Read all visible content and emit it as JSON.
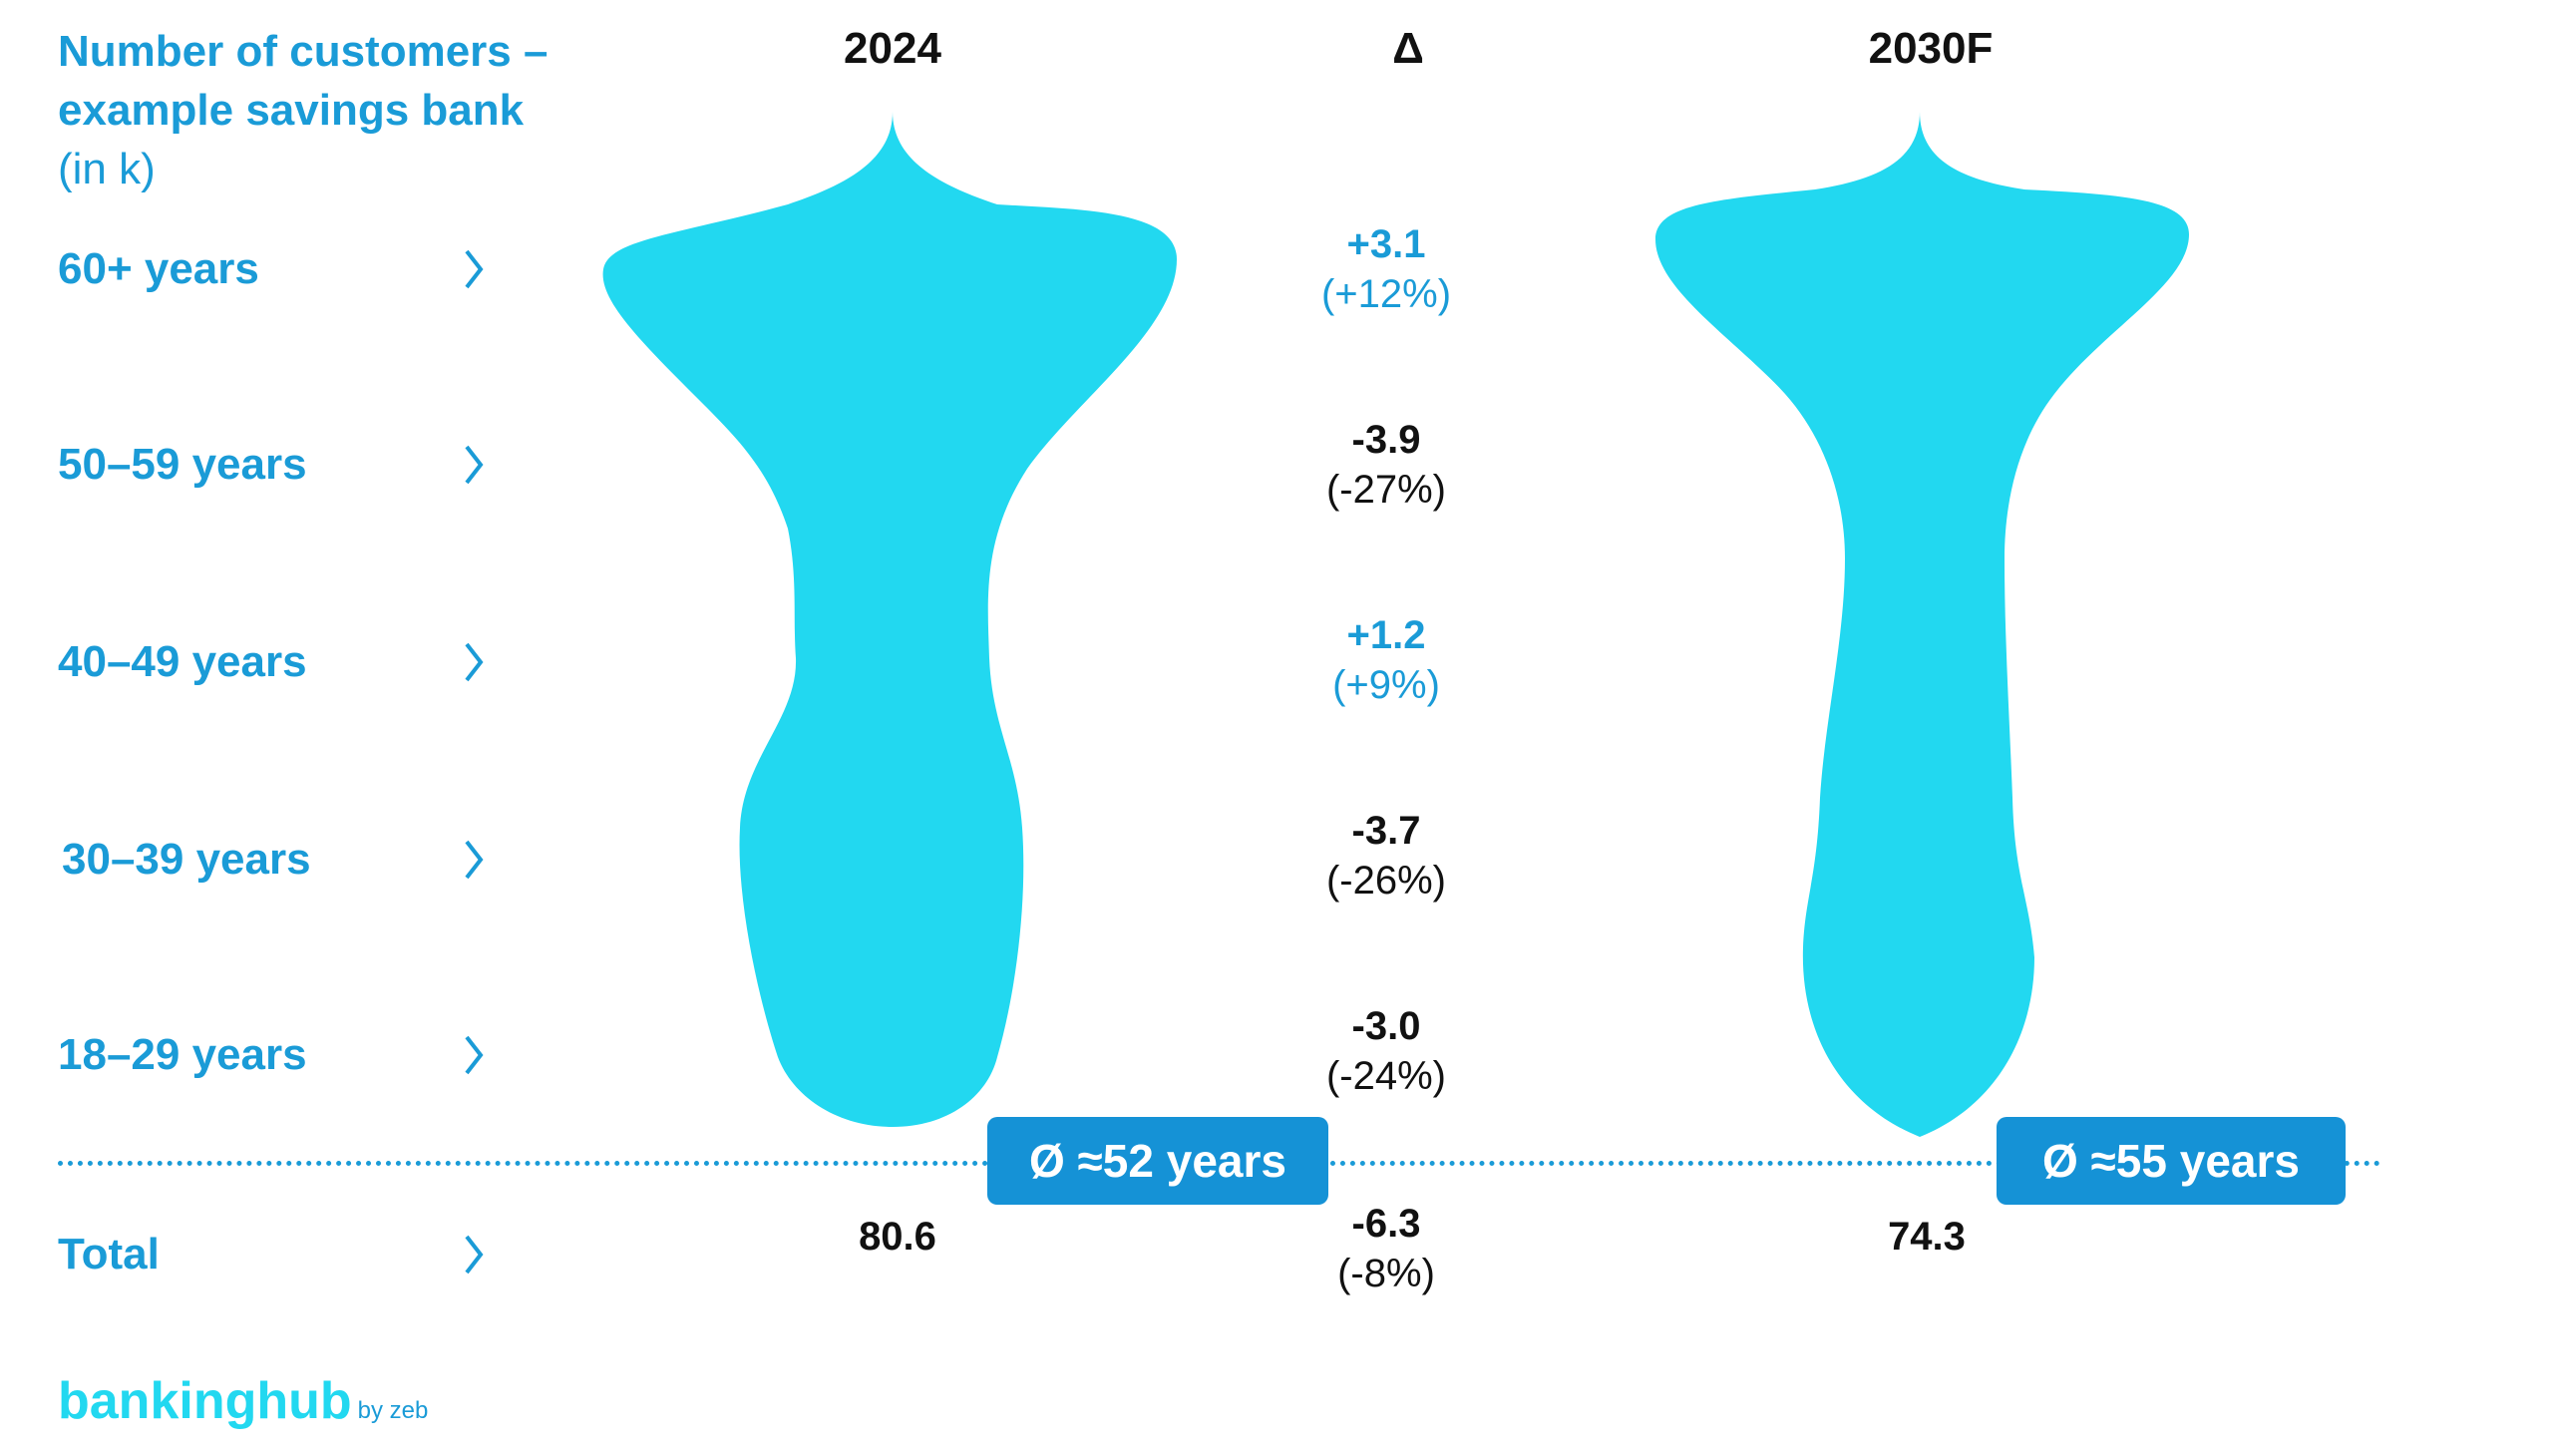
{
  "title": {
    "line1": "Number of customers –",
    "line2": "example savings bank",
    "unit": "(in k)"
  },
  "columns": {
    "left": "2024",
    "middle": "Δ",
    "right": "2030F"
  },
  "rows": [
    {
      "label": "60+ years",
      "delta": "+3.1",
      "pct": "(+12%)",
      "tone": "positive"
    },
    {
      "label": "50–59 years",
      "delta": "-3.9",
      "pct": "(-27%)",
      "tone": "negative"
    },
    {
      "label": "40–49 years",
      "delta": "+1.2",
      "pct": "(+9%)",
      "tone": "positive"
    },
    {
      "label": "30–39 years",
      "delta": "-3.7",
      "pct": "(-26%)",
      "tone": "negative"
    },
    {
      "label": "18–29 years",
      "delta": "-3.0",
      "pct": "(-24%)",
      "tone": "negative"
    }
  ],
  "total": {
    "label": "Total",
    "left": "80.6",
    "delta": "-6.3",
    "pct": "(-8%)",
    "right": "74.3"
  },
  "averages": {
    "left": "Ø ≈52 years",
    "right": "Ø ≈55 years"
  },
  "logo": {
    "main": "bankinghub",
    "sub": "by zeb"
  },
  "colors": {
    "shape": "#22d8f0",
    "accent": "#1a9bd7",
    "badge": "#1592d6",
    "text": "#111111"
  },
  "chart_data": {
    "type": "violin",
    "categories": [
      "60+ years",
      "50–59 years",
      "40–49 years",
      "30–39 years",
      "18–29 years"
    ],
    "series": [
      {
        "name": "2024",
        "total": 80.6,
        "average_age": "≈52"
      },
      {
        "name": "2030F",
        "total": 74.3,
        "average_age": "≈55"
      }
    ],
    "deltas": [
      3.1,
      -3.9,
      1.2,
      -3.7,
      -3.0
    ],
    "delta_pct": [
      12,
      -27,
      9,
      -26,
      -24
    ],
    "total_delta": -6.3,
    "total_delta_pct": -8
  }
}
